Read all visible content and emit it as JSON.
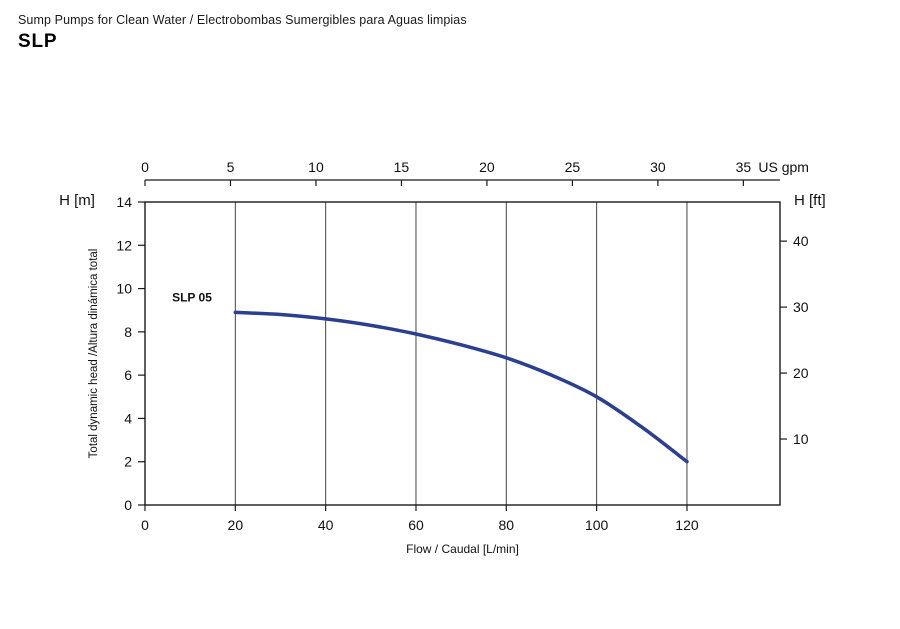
{
  "header": {
    "subtitle": "Sump Pumps for Clean Water / Electrobombas Sumergibles para Aguas limpias",
    "title": "SLP"
  },
  "chart_data": {
    "type": "line",
    "title": "",
    "xlabel": "Flow / Caudal [L/min]",
    "ylabel": "Total dynamic head /Altura dinámica total",
    "left_axis_label": "H [m]",
    "right_axis_label": "H [ft]",
    "top_axis_unit_label": "US gpm",
    "xlim": [
      0,
      140.6
    ],
    "ylim": [
      0,
      14
    ],
    "bottom_ticks_lmin": [
      0,
      20,
      40,
      60,
      80,
      100,
      120
    ],
    "left_ticks_m": [
      0,
      2,
      4,
      6,
      8,
      10,
      12,
      14
    ],
    "top_ticks_gpm": [
      0,
      5,
      10,
      15,
      20,
      25,
      30,
      35
    ],
    "right_ticks_ft": [
      10,
      20,
      30,
      40
    ],
    "gpm_to_lmin": 3.78541,
    "ft_to_m": 0.3048,
    "grid_x_lmin": [
      20,
      40,
      60,
      80,
      100,
      120
    ],
    "grid_on": true,
    "axis_color": "#1a1a1a",
    "grid_color": "#444444",
    "series": [
      {
        "name": "SLP 05",
        "color": "#2a3f8f",
        "points_lmin_m": [
          [
            20,
            8.9
          ],
          [
            30,
            8.8
          ],
          [
            40,
            8.6
          ],
          [
            50,
            8.3
          ],
          [
            60,
            7.9
          ],
          [
            70,
            7.4
          ],
          [
            80,
            6.8
          ],
          [
            90,
            6.0
          ],
          [
            100,
            5.0
          ],
          [
            110,
            3.6
          ],
          [
            120,
            2.0
          ]
        ]
      }
    ],
    "series_label": {
      "text": "SLP 05",
      "x_lmin": 6,
      "y_m": 9.4
    }
  }
}
